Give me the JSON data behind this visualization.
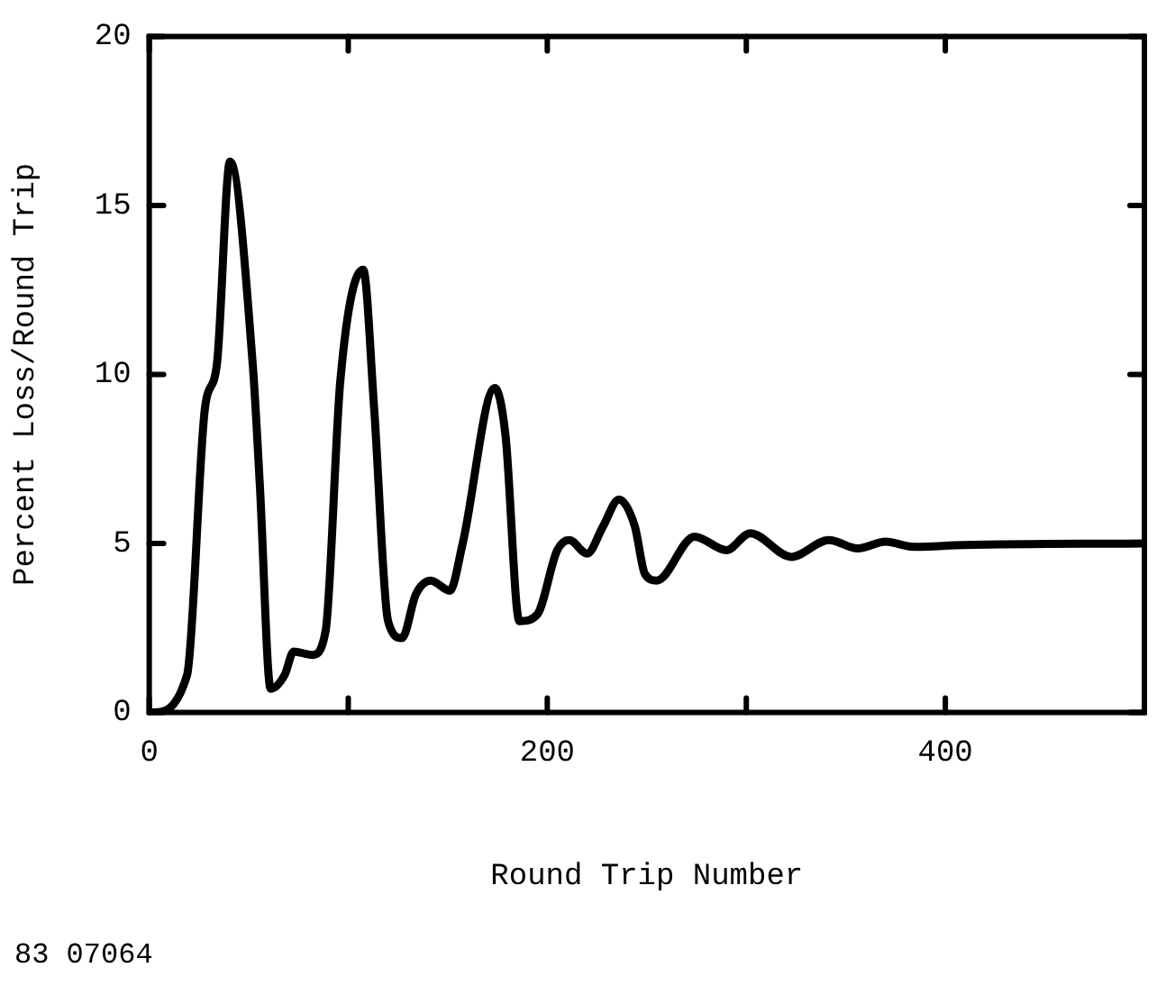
{
  "chart_data": {
    "type": "line",
    "xlabel": "Round Trip Number",
    "ylabel": "Percent Loss/Round Trip",
    "annotations": [
      "83 07064"
    ],
    "x": [
      0,
      2,
      19,
      28,
      34,
      40.6,
      52,
      55.6,
      61,
      68,
      72.6,
      82,
      88.6,
      96,
      107.5,
      113,
      120,
      127,
      134,
      141.5,
      151,
      157.5,
      173.6,
      179,
      186,
      195,
      205,
      211,
      220,
      228,
      236,
      244,
      249,
      255,
      274,
      290,
      302,
      322.6,
      341.5,
      356,
      370,
      384,
      409,
      500
    ],
    "values": [
      0,
      0,
      1.1,
      9.0,
      10.3,
      16.3,
      10.3,
      6.7,
      0.7,
      1.1,
      1.8,
      1.7,
      2.4,
      9.8,
      13.1,
      9.0,
      2.7,
      2.2,
      3.5,
      3.9,
      3.6,
      5.0,
      9.6,
      8.2,
      2.7,
      2.9,
      4.8,
      5.1,
      4.7,
      5.5,
      6.3,
      5.5,
      4.1,
      3.9,
      5.2,
      4.8,
      5.3,
      4.6,
      5.1,
      4.85,
      5.05,
      4.9,
      4.95,
      5.0
    ],
    "color": "#000000",
    "marker": "none",
    "line_style": "solid",
    "grid": false,
    "legend": false,
    "xlim": [
      0,
      500
    ],
    "xticks": [
      0,
      {
        "value": 100,
        "label": null
      },
      200,
      {
        "value": 300,
        "label": null
      },
      400,
      {
        "value": 500,
        "label": null
      }
    ],
    "ylim": [
      0,
      20
    ],
    "yticks": [
      0,
      5,
      10,
      15,
      20
    ]
  }
}
